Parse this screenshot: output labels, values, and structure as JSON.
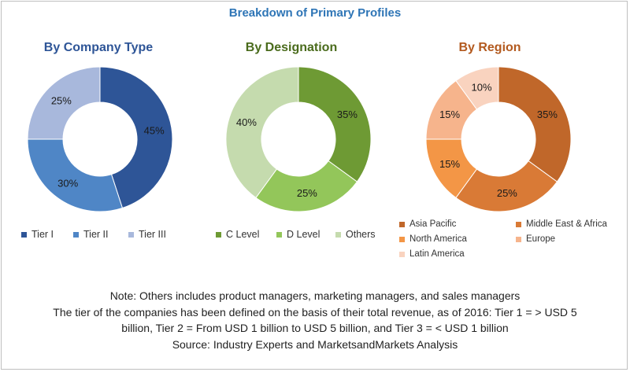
{
  "title": "Breakdown of Primary Profiles",
  "colors": {
    "title": "#2e75b6"
  },
  "chart_data": [
    {
      "type": "pie",
      "subtitle": "By Company Type",
      "categories": [
        "Tier I",
        "Tier II",
        "Tier III"
      ],
      "values": [
        45,
        30,
        25
      ],
      "labels": [
        "45%",
        "30%",
        "25%"
      ],
      "colors": [
        "#2e5597",
        "#4f86c6",
        "#a8b8dc"
      ],
      "legend_position": "bottom"
    },
    {
      "type": "pie",
      "subtitle": "By Designation",
      "categories": [
        "C Level",
        "D Level",
        "Others"
      ],
      "values": [
        35,
        25,
        40
      ],
      "labels": [
        "35%",
        "25%",
        "40%"
      ],
      "colors": [
        "#6e9a34",
        "#93c65a",
        "#c5dbae"
      ],
      "legend_position": "bottom"
    },
    {
      "type": "pie",
      "subtitle": "By Region",
      "categories": [
        "Asia Pacific",
        "Middle East & Africa",
        "North America",
        "Europe",
        "Latin America"
      ],
      "values": [
        35,
        25,
        15,
        15,
        10
      ],
      "labels": [
        "35%",
        "25%",
        "15%",
        "15%",
        "10%"
      ],
      "colors": [
        "#c0672a",
        "#d97a36",
        "#f39646",
        "#f6b48c",
        "#f9d3bf"
      ],
      "legend_position": "bottom"
    }
  ],
  "notes": [
    "Note: Others includes product managers, marketing managers, and sales managers",
    "The tier of the companies has been defined on the basis of their total revenue, as of 2016: Tier 1 = > USD 5",
    "billion, Tier 2 = From USD 1 billion to USD 5 billion, and Tier 3 = < USD 1 billion",
    "Source: Industry Experts and MarketsandMarkets Analysis"
  ]
}
